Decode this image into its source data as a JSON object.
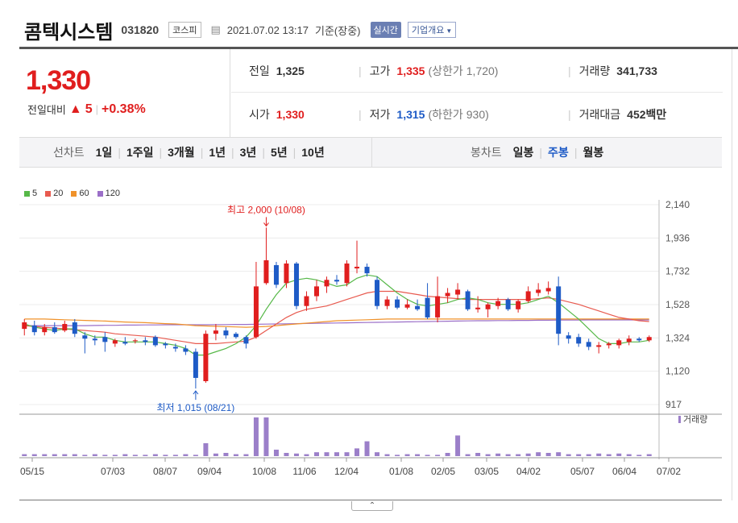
{
  "header": {
    "name": "콤텍시스템",
    "code": "031820",
    "market": "코스피",
    "calendar_icon": "calendar-icon",
    "datetime": "2021.07.02 13:17",
    "status": "기준(장중)",
    "realtime": "실시간",
    "company": "기업개요",
    "dropdown_icon": "caret-down-icon"
  },
  "price": {
    "current": "1,330",
    "change_label": "전일대비",
    "change_icon": "triangle-up-icon",
    "change": "5",
    "sep": "|",
    "percent": "+0.38%"
  },
  "summary": {
    "prev_label": "전일",
    "prev": "1,325",
    "high_label": "고가",
    "high": "1,335",
    "upper_label": "(상한가",
    "upper": "1,720)",
    "volume_label": "거래량",
    "volume": "341,733",
    "open_label": "시가",
    "open": "1,330",
    "low_label": "저가",
    "low": "1,315",
    "lower_label": "(하한가",
    "lower": "930)",
    "amount_label": "거래대금",
    "amount": "452",
    "amount_unit": "백만"
  },
  "periods": {
    "line_label": "선차트",
    "line": [
      "1일",
      "1주일",
      "3개월",
      "1년",
      "3년",
      "5년",
      "10년"
    ],
    "candle_label": "봉차트",
    "candle": [
      "일봉",
      "주봉",
      "월봉"
    ],
    "candle_active": 1
  },
  "colors": {
    "up": "#e01e1e",
    "down": "#1e5bc6",
    "ma5": "#56b848",
    "ma20": "#e85a4f",
    "ma60": "#f0922a",
    "ma120": "#9b6fc8",
    "volume": "#9b7fc9"
  },
  "chart_data": {
    "type": "candlestick",
    "title": "",
    "legend": [
      "5",
      "20",
      "60",
      "120"
    ],
    "y_ticks": [
      "2,140",
      "1,936",
      "1,732",
      "1,528",
      "1,324",
      "1,120",
      "917"
    ],
    "ylim": [
      917,
      2140
    ],
    "x_ticks": [
      "05/15",
      "07/03",
      "08/07",
      "09/04",
      "10/08",
      "11/06",
      "12/04",
      "01/08",
      "02/05",
      "03/05",
      "04/02",
      "05/07",
      "06/04",
      "07/02"
    ],
    "high_note": "최고 2,000 (10/08)",
    "low_note": "최저 1,015 (08/21)",
    "volume_label": "거래량",
    "candles": [
      {
        "o": 1380,
        "h": 1440,
        "l": 1340,
        "c": 1420
      },
      {
        "o": 1400,
        "h": 1430,
        "l": 1340,
        "c": 1360
      },
      {
        "o": 1360,
        "h": 1410,
        "l": 1340,
        "c": 1390
      },
      {
        "o": 1390,
        "h": 1420,
        "l": 1350,
        "c": 1360
      },
      {
        "o": 1370,
        "h": 1430,
        "l": 1360,
        "c": 1410
      },
      {
        "o": 1420,
        "h": 1440,
        "l": 1330,
        "c": 1350
      },
      {
        "o": 1340,
        "h": 1360,
        "l": 1230,
        "c": 1320
      },
      {
        "o": 1320,
        "h": 1340,
        "l": 1280,
        "c": 1310
      },
      {
        "o": 1330,
        "h": 1360,
        "l": 1240,
        "c": 1300
      },
      {
        "o": 1290,
        "h": 1320,
        "l": 1270,
        "c": 1310
      },
      {
        "o": 1300,
        "h": 1330,
        "l": 1280,
        "c": 1290
      },
      {
        "o": 1310,
        "h": 1320,
        "l": 1290,
        "c": 1310
      },
      {
        "o": 1310,
        "h": 1330,
        "l": 1280,
        "c": 1300
      },
      {
        "o": 1330,
        "h": 1340,
        "l": 1270,
        "c": 1280
      },
      {
        "o": 1290,
        "h": 1300,
        "l": 1260,
        "c": 1280
      },
      {
        "o": 1270,
        "h": 1290,
        "l": 1240,
        "c": 1260
      },
      {
        "o": 1260,
        "h": 1280,
        "l": 1220,
        "c": 1240
      },
      {
        "o": 1240,
        "h": 1260,
        "l": 1015,
        "c": 1080
      },
      {
        "o": 1060,
        "h": 1370,
        "l": 1050,
        "c": 1350
      },
      {
        "o": 1350,
        "h": 1410,
        "l": 1310,
        "c": 1370
      },
      {
        "o": 1370,
        "h": 1390,
        "l": 1320,
        "c": 1340
      },
      {
        "o": 1350,
        "h": 1360,
        "l": 1320,
        "c": 1330
      },
      {
        "o": 1330,
        "h": 1340,
        "l": 1260,
        "c": 1290
      },
      {
        "o": 1330,
        "h": 1790,
        "l": 1320,
        "c": 1640
      },
      {
        "o": 1660,
        "h": 2000,
        "l": 1650,
        "c": 1800
      },
      {
        "o": 1770,
        "h": 1790,
        "l": 1630,
        "c": 1650
      },
      {
        "o": 1660,
        "h": 1800,
        "l": 1630,
        "c": 1780
      },
      {
        "o": 1780,
        "h": 1790,
        "l": 1500,
        "c": 1520
      },
      {
        "o": 1520,
        "h": 1610,
        "l": 1490,
        "c": 1580
      },
      {
        "o": 1580,
        "h": 1680,
        "l": 1550,
        "c": 1640
      },
      {
        "o": 1640,
        "h": 1700,
        "l": 1600,
        "c": 1680
      },
      {
        "o": 1680,
        "h": 1710,
        "l": 1650,
        "c": 1670
      },
      {
        "o": 1660,
        "h": 1800,
        "l": 1640,
        "c": 1780
      },
      {
        "o": 1750,
        "h": 1920,
        "l": 1720,
        "c": 1760
      },
      {
        "o": 1760,
        "h": 1780,
        "l": 1700,
        "c": 1720
      },
      {
        "o": 1680,
        "h": 1700,
        "l": 1500,
        "c": 1520
      },
      {
        "o": 1520,
        "h": 1580,
        "l": 1500,
        "c": 1560
      },
      {
        "o": 1560,
        "h": 1580,
        "l": 1500,
        "c": 1510
      },
      {
        "o": 1510,
        "h": 1560,
        "l": 1500,
        "c": 1530
      },
      {
        "o": 1520,
        "h": 1560,
        "l": 1490,
        "c": 1500
      },
      {
        "o": 1570,
        "h": 1660,
        "l": 1440,
        "c": 1450
      },
      {
        "o": 1450,
        "h": 1700,
        "l": 1420,
        "c": 1580
      },
      {
        "o": 1580,
        "h": 1630,
        "l": 1540,
        "c": 1600
      },
      {
        "o": 1590,
        "h": 1660,
        "l": 1560,
        "c": 1620
      },
      {
        "o": 1610,
        "h": 1620,
        "l": 1490,
        "c": 1500
      },
      {
        "o": 1500,
        "h": 1580,
        "l": 1480,
        "c": 1510
      },
      {
        "o": 1500,
        "h": 1540,
        "l": 1450,
        "c": 1530
      },
      {
        "o": 1520,
        "h": 1570,
        "l": 1500,
        "c": 1550
      },
      {
        "o": 1560,
        "h": 1570,
        "l": 1490,
        "c": 1500
      },
      {
        "o": 1500,
        "h": 1560,
        "l": 1480,
        "c": 1550
      },
      {
        "o": 1550,
        "h": 1640,
        "l": 1540,
        "c": 1610
      },
      {
        "o": 1600,
        "h": 1660,
        "l": 1580,
        "c": 1620
      },
      {
        "o": 1610,
        "h": 1670,
        "l": 1590,
        "c": 1630
      },
      {
        "o": 1640,
        "h": 1700,
        "l": 1280,
        "c": 1350
      },
      {
        "o": 1340,
        "h": 1360,
        "l": 1290,
        "c": 1320
      },
      {
        "o": 1330,
        "h": 1350,
        "l": 1270,
        "c": 1290
      },
      {
        "o": 1300,
        "h": 1320,
        "l": 1250,
        "c": 1270
      },
      {
        "o": 1270,
        "h": 1300,
        "l": 1230,
        "c": 1280
      },
      {
        "o": 1280,
        "h": 1300,
        "l": 1260,
        "c": 1290
      },
      {
        "o": 1280,
        "h": 1320,
        "l": 1260,
        "c": 1310
      },
      {
        "o": 1300,
        "h": 1340,
        "l": 1280,
        "c": 1320
      },
      {
        "o": 1320,
        "h": 1330,
        "l": 1300,
        "c": 1310
      },
      {
        "o": 1310,
        "h": 1340,
        "l": 1300,
        "c": 1330
      }
    ],
    "ma5": [
      1410,
      1390,
      1380,
      1370,
      1380,
      1380,
      1350,
      1330,
      1330,
      1310,
      1300,
      1300,
      1300,
      1300,
      1290,
      1280,
      1260,
      1220,
      1220,
      1240,
      1260,
      1290,
      1330,
      1400,
      1500,
      1590,
      1660,
      1680,
      1690,
      1680,
      1660,
      1640,
      1650,
      1690,
      1710,
      1700,
      1650,
      1600,
      1560,
      1530,
      1520,
      1530,
      1540,
      1560,
      1570,
      1560,
      1540,
      1530,
      1530,
      1530,
      1540,
      1560,
      1580,
      1540,
      1490,
      1440,
      1380,
      1320,
      1290,
      1290,
      1300,
      1300,
      1310
    ],
    "ma20": [
      1400,
      1395,
      1390,
      1385,
      1380,
      1375,
      1370,
      1365,
      1360,
      1350,
      1345,
      1340,
      1335,
      1330,
      1320,
      1310,
      1300,
      1290,
      1290,
      1290,
      1295,
      1300,
      1305,
      1330,
      1370,
      1410,
      1450,
      1480,
      1500,
      1510,
      1520,
      1540,
      1560,
      1580,
      1600,
      1610,
      1610,
      1610,
      1600,
      1590,
      1580,
      1575,
      1570,
      1565,
      1560,
      1560,
      1560,
      1560,
      1560,
      1560,
      1560,
      1565,
      1570,
      1560,
      1545,
      1530,
      1510,
      1490,
      1470,
      1450,
      1440,
      1430,
      1425
    ],
    "ma60": [
      1440,
      1440,
      1440,
      1438,
      1436,
      1434,
      1432,
      1430,
      1428,
      1425,
      1422,
      1420,
      1418,
      1415,
      1412,
      1410,
      1405,
      1400,
      1398,
      1396,
      1394,
      1392,
      1390,
      1392,
      1395,
      1400,
      1405,
      1410,
      1415,
      1420,
      1425,
      1430,
      1432,
      1434,
      1436,
      1438,
      1440,
      1440,
      1440,
      1440,
      1440,
      1440,
      1440,
      1440,
      1440,
      1440,
      1440,
      1440,
      1440,
      1440,
      1440,
      1440,
      1440,
      1440,
      1440,
      1440,
      1440,
      1440,
      1440,
      1440,
      1440,
      1440,
      1440
    ],
    "ma120": [
      1400,
      1400,
      1400,
      1400,
      1400,
      1400,
      1400,
      1401,
      1402,
      1402,
      1403,
      1403,
      1404,
      1404,
      1405,
      1405,
      1405,
      1405,
      1405,
      1406,
      1406,
      1407,
      1407,
      1408,
      1409,
      1410,
      1411,
      1412,
      1413,
      1414,
      1415,
      1416,
      1417,
      1418,
      1419,
      1420,
      1421,
      1422,
      1423,
      1424,
      1425,
      1426,
      1427,
      1428,
      1429,
      1430,
      1430,
      1431,
      1431,
      1432,
      1432,
      1433,
      1433,
      1434,
      1434,
      1434,
      1435,
      1435,
      1435,
      1435,
      1435,
      1435,
      1435
    ],
    "volume": [
      3,
      3,
      3,
      3,
      3,
      3,
      2,
      3,
      2,
      2,
      3,
      2,
      2,
      3,
      2,
      2,
      3,
      2,
      20,
      4,
      5,
      3,
      3,
      60,
      60,
      10,
      5,
      4,
      3,
      6,
      6,
      6,
      6,
      12,
      23,
      6,
      3,
      2,
      3,
      3,
      2,
      2,
      5,
      32,
      3,
      5,
      3,
      4,
      3,
      3,
      4,
      6,
      5,
      6,
      3,
      3,
      3,
      4,
      3,
      4,
      3,
      2,
      3
    ]
  }
}
